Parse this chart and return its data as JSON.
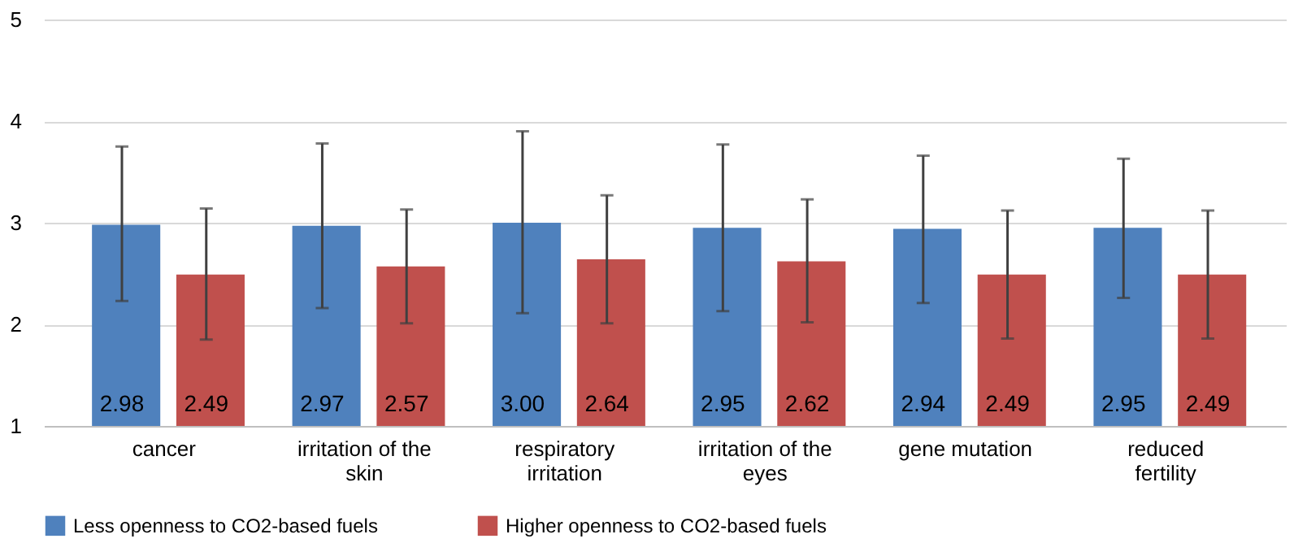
{
  "chart_data": {
    "type": "bar",
    "categories": [
      "cancer",
      "irritation of the skin",
      "respiratory irritation",
      "irritation of the eyes",
      "gene mutation",
      "reduced fertility"
    ],
    "series": [
      {
        "name": "Less openness to CO2-based fuels",
        "color": "#4f81bd",
        "values": [
          2.98,
          2.97,
          3.0,
          2.95,
          2.94,
          2.95
        ],
        "value_labels": [
          "2.98",
          "2.97",
          "3.00",
          "2.95",
          "2.94",
          "2.95"
        ],
        "errors": [
          [
            2.23,
            3.75
          ],
          [
            2.16,
            3.78
          ],
          [
            2.11,
            3.9
          ],
          [
            2.13,
            3.77
          ],
          [
            2.21,
            3.66
          ],
          [
            2.26,
            3.63
          ]
        ]
      },
      {
        "name": "Higher openness to CO2-based fuels",
        "color": "#c0504d",
        "values": [
          2.49,
          2.57,
          2.64,
          2.62,
          2.49,
          2.49
        ],
        "value_labels": [
          "2.49",
          "2.57",
          "2.64",
          "2.62",
          "2.49",
          "2.49"
        ],
        "errors": [
          [
            1.85,
            3.14
          ],
          [
            2.01,
            3.13
          ],
          [
            2.01,
            3.27
          ],
          [
            2.02,
            3.23
          ],
          [
            1.86,
            3.12
          ],
          [
            1.86,
            3.12
          ]
        ]
      }
    ],
    "ylim": [
      1,
      5
    ],
    "yticks": [
      1,
      2,
      3,
      4,
      5
    ],
    "grid": "y",
    "legend": "bottom"
  }
}
